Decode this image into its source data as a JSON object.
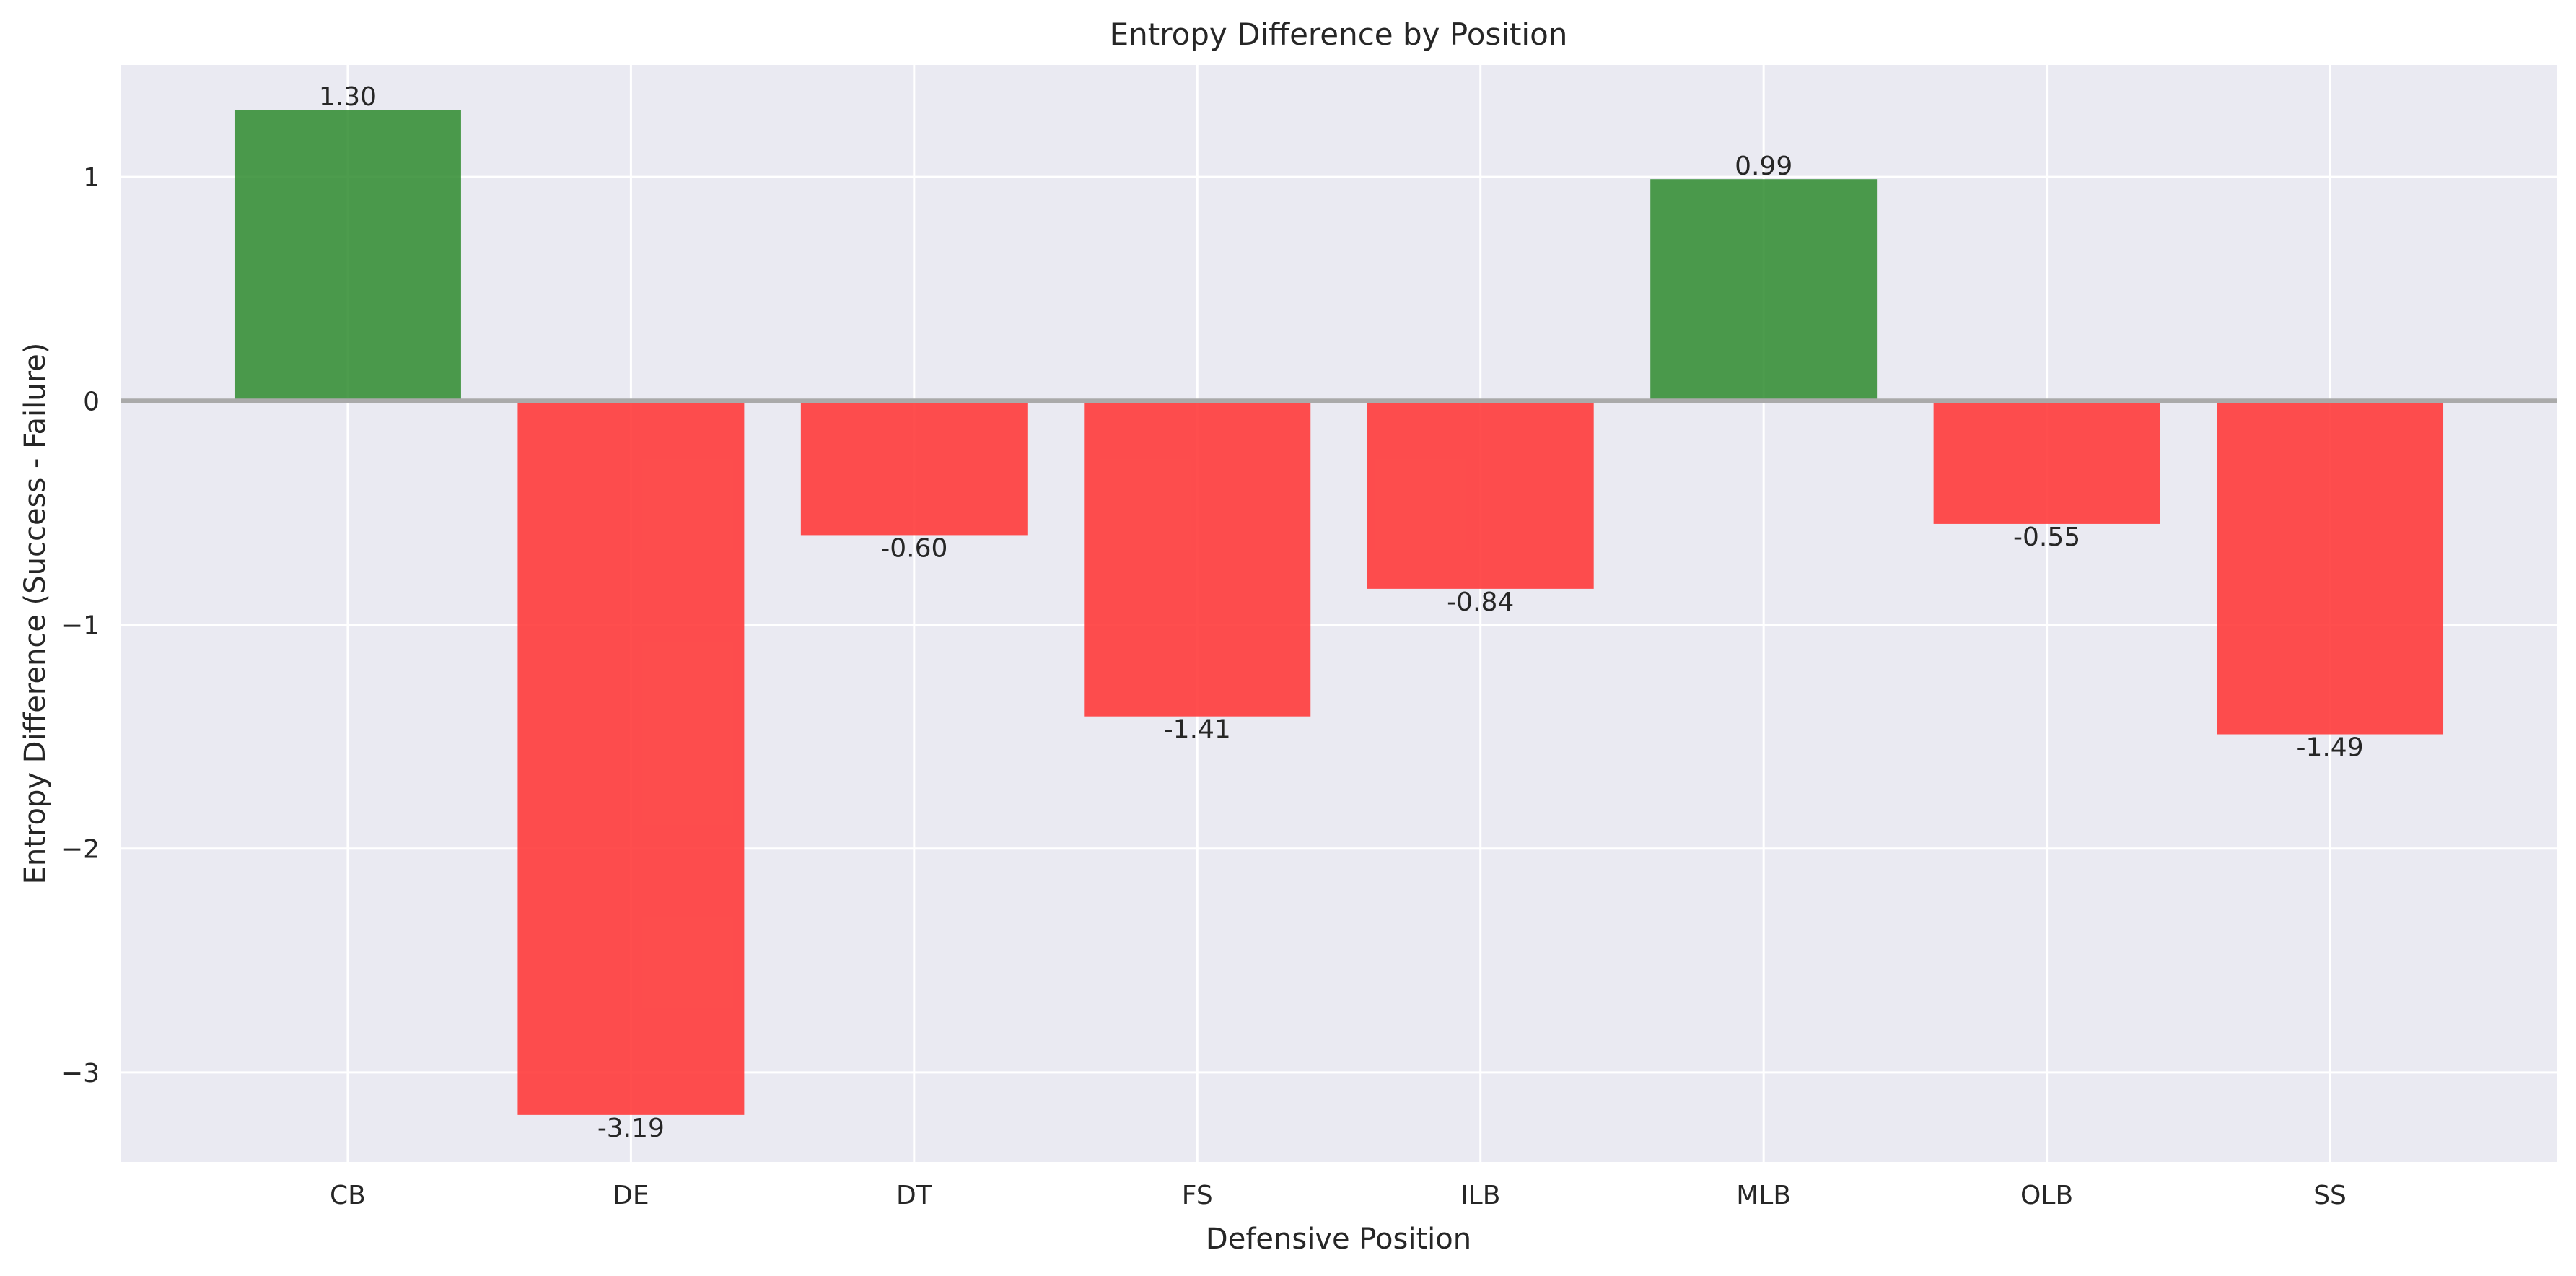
{
  "chart_data": {
    "type": "bar",
    "title": "Entropy Difference by Position",
    "xlabel": "Defensive Position",
    "ylabel": "Entropy Difference (Success - Failure)",
    "categories": [
      "CB",
      "DE",
      "DT",
      "FS",
      "ILB",
      "MLB",
      "OLB",
      "SS"
    ],
    "values": [
      1.3,
      -3.19,
      -0.6,
      -1.41,
      -0.84,
      0.99,
      -0.55,
      -1.49
    ],
    "value_labels": [
      "1.30",
      "-3.19",
      "-0.60",
      "-1.41",
      "-0.84",
      "0.99",
      "-0.55",
      "-1.49"
    ],
    "ylim": [
      -3.4,
      1.5
    ],
    "yticks": [
      -3,
      -2,
      -1,
      0,
      1
    ],
    "ytick_labels": [
      "−3",
      "−2",
      "−1",
      "0",
      "1"
    ],
    "grid": true,
    "legend": "none",
    "colors": {
      "positive": "#2e8b2e",
      "negative": "#ff3b3b",
      "background": "#eaeaf2",
      "grid": "#ffffff",
      "zero_line": "#aaaaaa"
    }
  }
}
